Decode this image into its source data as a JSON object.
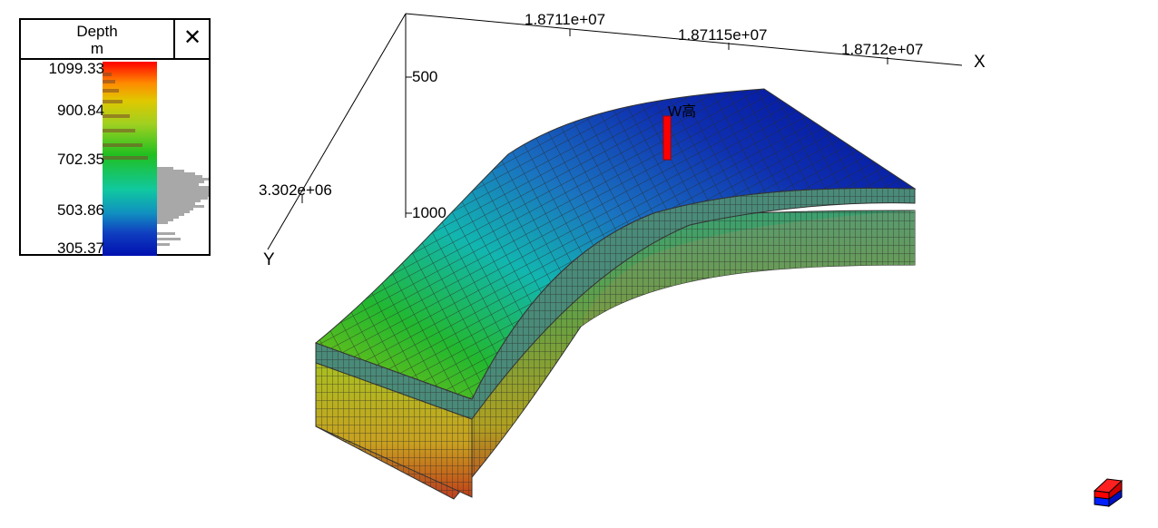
{
  "legend": {
    "title": "Depth",
    "unit": "m",
    "close_glyph": "✕",
    "ticks": [
      "1099.33",
      "900.84",
      "702.35",
      "503.86",
      "305.37"
    ],
    "min": 305.37,
    "max": 1099.33
  },
  "axes": {
    "x_label": "X",
    "y_label": "Y",
    "x_ticks": [
      "1.8711e+07",
      "1.87115e+07",
      "1.8712e+07"
    ],
    "y_ticks": [
      "3.302e+06"
    ],
    "z_ticks": [
      "500",
      "1000"
    ]
  },
  "well": {
    "name": "W高",
    "color": "#ff0000"
  },
  "orientation_cube": {
    "icon": "view-orientation-cube-icon",
    "top_color": "#ff0000",
    "bottom_color": "#0000ff"
  },
  "colors": {
    "grid_line": "#333333",
    "axis": "#000000"
  }
}
